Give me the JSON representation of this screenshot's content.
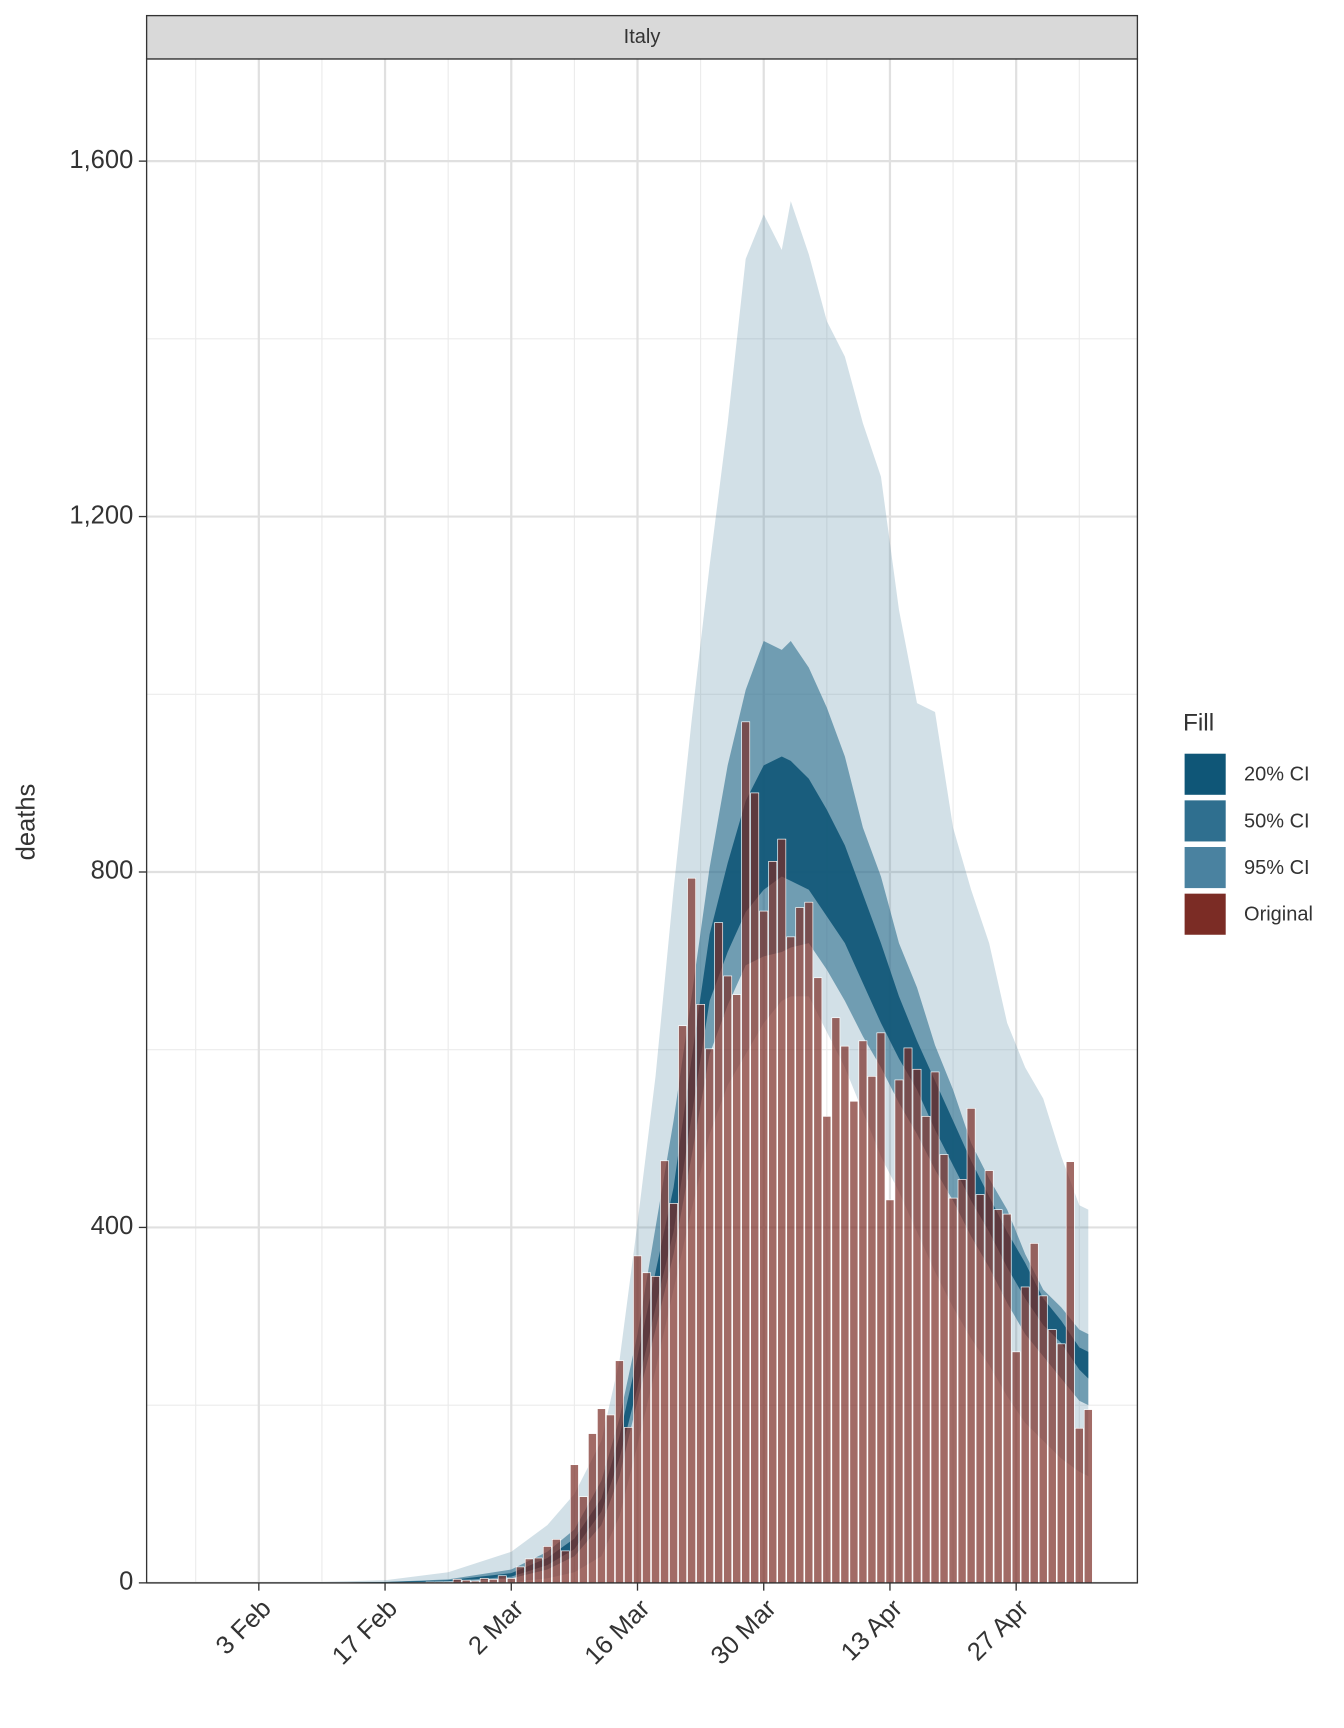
{
  "chart_data": {
    "type": "bar",
    "title": "Italy",
    "y_label": "deaths",
    "legend": {
      "title": "Fill",
      "position": "right"
    },
    "grid": true,
    "ylim": [
      0,
      1715
    ],
    "yticks": [
      0,
      400,
      800,
      {
        "value": 1200,
        "label": "1,200"
      },
      {
        "value": 1600,
        "label": "1,600"
      }
    ],
    "yminor": [
      200,
      600,
      1000,
      1400
    ],
    "xticks": [
      "3 Feb",
      "17 Feb",
      "2 Mar",
      "16 Mar",
      "30 Mar",
      "13 Apr",
      "27 Apr"
    ],
    "xminor": [
      "27 Jan",
      "10 Feb",
      "24 Feb",
      "9 Mar",
      "23 Mar",
      "6 Apr",
      "20 Apr",
      "4 May"
    ],
    "x": [
      "27 Jan",
      "28 Jan",
      "29 Jan",
      "30 Jan",
      "31 Jan",
      "1 Feb",
      "2 Feb",
      "3 Feb",
      "4 Feb",
      "5 Feb",
      "6 Feb",
      "7 Feb",
      "8 Feb",
      "9 Feb",
      "10 Feb",
      "11 Feb",
      "12 Feb",
      "13 Feb",
      "14 Feb",
      "15 Feb",
      "16 Feb",
      "17 Feb",
      "18 Feb",
      "19 Feb",
      "20 Feb",
      "21 Feb",
      "22 Feb",
      "23 Feb",
      "24 Feb",
      "25 Feb",
      "26 Feb",
      "27 Feb",
      "28 Feb",
      "29 Feb",
      "1 Mar",
      "2 Mar",
      "3 Mar",
      "4 Mar",
      "5 Mar",
      "6 Mar",
      "7 Mar",
      "8 Mar",
      "9 Mar",
      "10 Mar",
      "11 Mar",
      "12 Mar",
      "13 Mar",
      "14 Mar",
      "15 Mar",
      "16 Mar",
      "17 Mar",
      "18 Mar",
      "19 Mar",
      "20 Mar",
      "21 Mar",
      "22 Mar",
      "23 Mar",
      "24 Mar",
      "25 Mar",
      "26 Mar",
      "27 Mar",
      "28 Mar",
      "29 Mar",
      "30 Mar",
      "31 Mar",
      "1 Apr",
      "2 Apr",
      "3 Apr",
      "4 Apr",
      "5 Apr",
      "6 Apr",
      "7 Apr",
      "8 Apr",
      "9 Apr",
      "10 Apr",
      "11 Apr",
      "12 Apr",
      "13 Apr",
      "14 Apr",
      "15 Apr",
      "16 Apr",
      "17 Apr",
      "18 Apr",
      "19 Apr",
      "20 Apr",
      "21 Apr",
      "22 Apr",
      "23 Apr",
      "24 Apr",
      "25 Apr",
      "26 Apr",
      "27 Apr",
      "28 Apr",
      "29 Apr",
      "30 Apr",
      "1 May",
      "2 May",
      "3 May",
      "4 May",
      "5 May"
    ],
    "bars": {
      "name": "Original",
      "color": "#7b2c25",
      "alpha": 0.7,
      "values": [
        0,
        0,
        0,
        0,
        0,
        0,
        0,
        0,
        0,
        0,
        0,
        0,
        0,
        0,
        0,
        0,
        0,
        0,
        0,
        0,
        0,
        0,
        0,
        0,
        0,
        0,
        1,
        1,
        1,
        4,
        3,
        2,
        5,
        4,
        8,
        5,
        18,
        27,
        28,
        41,
        49,
        36,
        133,
        97,
        168,
        196,
        189,
        250,
        175,
        368,
        349,
        345,
        475,
        427,
        627,
        793,
        651,
        601,
        743,
        683,
        662,
        969,
        889,
        756,
        812,
        837,
        727,
        760,
        766,
        681,
        525,
        636,
        604,
        542,
        610,
        570,
        619,
        431,
        566,
        602,
        578,
        525,
        575,
        482,
        433,
        454,
        534,
        437,
        464,
        420,
        415,
        260,
        333,
        382,
        323,
        285,
        269,
        474,
        174,
        195
      ]
    },
    "band_x": [
      "27 Jan",
      "10 Feb",
      "17 Feb",
      "24 Feb",
      "2 Mar",
      "6 Mar",
      "9 Mar",
      "12 Mar",
      "14 Mar",
      "16 Mar",
      "18 Mar",
      "20 Mar",
      "22 Mar",
      "24 Mar",
      "26 Mar",
      "28 Mar",
      "30 Mar",
      "1 Apr",
      "2 Apr",
      "4 Apr",
      "6 Apr",
      "8 Apr",
      "10 Apr",
      "12 Apr",
      "14 Apr",
      "16 Apr",
      "18 Apr",
      "20 Apr",
      "22 Apr",
      "24 Apr",
      "26 Apr",
      "28 Apr",
      "30 Apr",
      "2 May",
      "4 May",
      "5 May"
    ],
    "series": [
      {
        "name": "20% CI",
        "type": "ribbon",
        "color": "#0f5677",
        "alpha": 0.9,
        "upper": [
          0,
          0,
          1,
          3,
          11,
          28,
          50,
          95,
          165,
          255,
          350,
          445,
          590,
          730,
          810,
          880,
          920,
          930,
          925,
          905,
          870,
          830,
          775,
          720,
          660,
          610,
          565,
          520,
          475,
          435,
          395,
          360,
          320,
          295,
          265,
          260
        ],
        "lower": [
          0,
          0,
          0,
          2,
          7,
          20,
          38,
          80,
          140,
          220,
          310,
          395,
          525,
          655,
          710,
          755,
          780,
          795,
          790,
          780,
          750,
          720,
          675,
          630,
          590,
          555,
          510,
          470,
          430,
          395,
          355,
          320,
          290,
          270,
          240,
          230
        ]
      },
      {
        "name": "50% CI",
        "type": "ribbon",
        "color": "#2f6f8f",
        "alpha": 0.6,
        "upper": [
          0,
          0,
          1,
          4,
          15,
          35,
          60,
          115,
          185,
          280,
          400,
          520,
          660,
          805,
          920,
          1005,
          1060,
          1050,
          1060,
          1030,
          985,
          930,
          850,
          795,
          720,
          670,
          605,
          555,
          495,
          455,
          420,
          370,
          330,
          310,
          285,
          280
        ],
        "lower": [
          0,
          0,
          0,
          1,
          5,
          15,
          30,
          65,
          120,
          205,
          285,
          370,
          480,
          595,
          650,
          695,
          705,
          710,
          715,
          720,
          690,
          655,
          615,
          580,
          540,
          505,
          465,
          430,
          390,
          355,
          315,
          280,
          255,
          230,
          205,
          200
        ]
      },
      {
        "name": "95% CI",
        "type": "ribbon",
        "color": "#4a82a0",
        "alpha": 0.25,
        "upper": [
          0,
          1,
          3,
          12,
          35,
          65,
          100,
          160,
          250,
          405,
          570,
          780,
          970,
          1145,
          1305,
          1490,
          1540,
          1500,
          1555,
          1495,
          1420,
          1380,
          1305,
          1245,
          1095,
          990,
          980,
          850,
          780,
          720,
          630,
          580,
          545,
          480,
          425,
          420
        ],
        "lower": [
          0,
          0,
          0,
          0,
          1,
          5,
          12,
          30,
          75,
          155,
          240,
          330,
          420,
          505,
          560,
          595,
          630,
          655,
          660,
          660,
          620,
          580,
          530,
          480,
          440,
          395,
          350,
          310,
          275,
          245,
          210,
          180,
          160,
          140,
          125,
          120
        ]
      }
    ]
  }
}
